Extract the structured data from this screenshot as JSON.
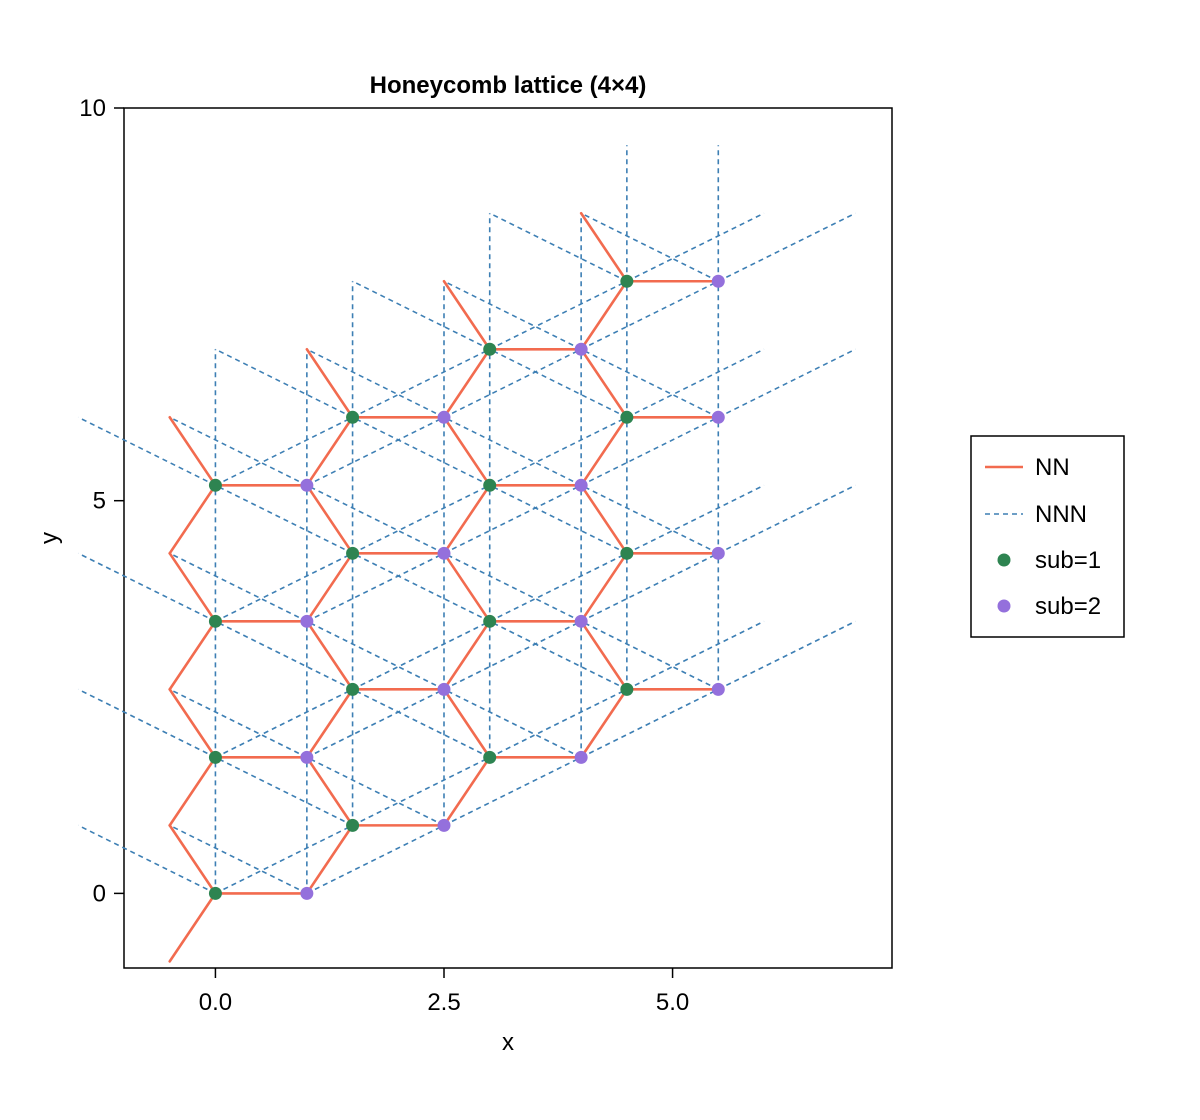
{
  "chart_data": {
    "type": "scatter",
    "title": "Honeycomb lattice  (4×4)",
    "xlabel": "x",
    "ylabel": "y",
    "xlim": [
      -1.0,
      7.4
    ],
    "ylim": [
      -0.95,
      10.0
    ],
    "xticks": [
      {
        "value": 0.0,
        "label": "0.0"
      },
      {
        "value": 2.5,
        "label": "2.5"
      },
      {
        "value": 5.0,
        "label": "5.0"
      }
    ],
    "yticks": [
      {
        "value": 0,
        "label": "0"
      },
      {
        "value": 5,
        "label": "5"
      },
      {
        "value": 10,
        "label": "10"
      }
    ],
    "grid": false,
    "legend_position": "right",
    "legend": [
      {
        "label": "NN",
        "kind": "line",
        "color": "#f26b4f"
      },
      {
        "label": "NNN",
        "kind": "dashed",
        "color": "#3d7fb4"
      },
      {
        "label": "sub=1",
        "kind": "marker",
        "color": "#2e8451"
      },
      {
        "label": "sub=2",
        "kind": "marker",
        "color": "#9470dc"
      }
    ],
    "lattice": {
      "a1": [
        1.5,
        0.866
      ],
      "a2": [
        0.0,
        1.732
      ],
      "sub_offset": [
        1.0,
        0.0
      ],
      "n1": 4,
      "n2": 4
    },
    "series": [
      {
        "name": "sub=1",
        "color": "#2e8451",
        "points": [
          [
            0.0,
            0.0
          ],
          [
            0.0,
            1.732
          ],
          [
            0.0,
            3.464
          ],
          [
            0.0,
            5.196
          ],
          [
            1.5,
            0.866
          ],
          [
            1.5,
            2.598
          ],
          [
            1.5,
            4.33
          ],
          [
            1.5,
            6.062
          ],
          [
            3.0,
            1.732
          ],
          [
            3.0,
            3.464
          ],
          [
            3.0,
            5.196
          ],
          [
            3.0,
            6.928
          ],
          [
            4.5,
            2.598
          ],
          [
            4.5,
            4.33
          ],
          [
            4.5,
            6.062
          ],
          [
            4.5,
            7.794
          ]
        ]
      },
      {
        "name": "sub=2",
        "color": "#9470dc",
        "points": [
          [
            1.0,
            0.0
          ],
          [
            1.0,
            1.732
          ],
          [
            1.0,
            3.464
          ],
          [
            1.0,
            5.196
          ],
          [
            2.5,
            0.866
          ],
          [
            2.5,
            2.598
          ],
          [
            2.5,
            4.33
          ],
          [
            2.5,
            6.062
          ],
          [
            4.0,
            1.732
          ],
          [
            4.0,
            3.464
          ],
          [
            4.0,
            5.196
          ],
          [
            4.0,
            6.928
          ],
          [
            5.5,
            2.598
          ],
          [
            5.5,
            4.33
          ],
          [
            5.5,
            6.062
          ],
          [
            5.5,
            7.794
          ]
        ]
      }
    ],
    "colors": {
      "nn": "#f26b4f",
      "nnn": "#3d7fb4",
      "sub1": "#2e8451",
      "sub2": "#9470dc"
    }
  }
}
